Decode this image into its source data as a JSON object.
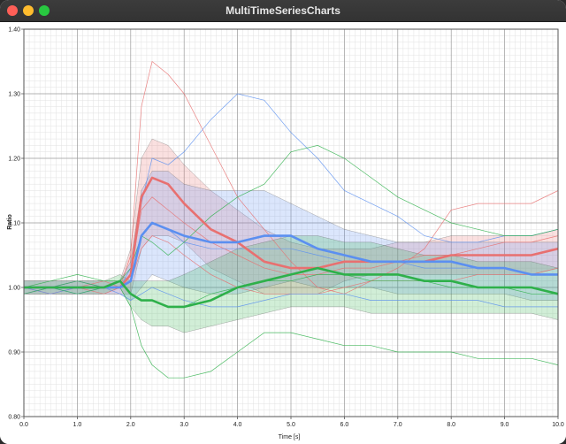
{
  "window": {
    "title": "MultiTimeSeriesCharts"
  },
  "chart_data": {
    "type": "line",
    "xlabel": "Time [s]",
    "ylabel": "Ratio",
    "xlim": [
      0,
      10
    ],
    "ylim": [
      0.8,
      1.4
    ],
    "x_ticks": [
      0.0,
      1.0,
      2.0,
      3.0,
      4.0,
      5.0,
      6.0,
      7.0,
      8.0,
      9.0,
      10.0
    ],
    "y_ticks": [
      0.8,
      0.9,
      1.0,
      1.1,
      1.2,
      1.3,
      1.4
    ],
    "x_tick_labels": [
      "0.0",
      "1.0",
      "2.0",
      "3.0",
      "4.0",
      "5.0",
      "6.0",
      "7.0",
      "8.0",
      "9.0",
      "10.0"
    ],
    "y_tick_labels": [
      "0.80",
      "0.90",
      "1.00",
      "1.10",
      "1.20",
      "1.30",
      "1.40"
    ],
    "grid": true,
    "x": [
      0.0,
      0.5,
      1.0,
      1.5,
      1.8,
      2.0,
      2.2,
      2.4,
      2.7,
      3.0,
      3.5,
      4.0,
      4.5,
      5.0,
      5.5,
      6.0,
      6.5,
      7.0,
      7.5,
      8.0,
      8.5,
      9.0,
      9.5,
      10.0
    ],
    "series": [
      {
        "color": "#e87070",
        "mean": [
          1.0,
          1.0,
          1.0,
          1.0,
          1.0,
          1.02,
          1.14,
          1.17,
          1.16,
          1.13,
          1.09,
          1.07,
          1.04,
          1.03,
          1.03,
          1.04,
          1.04,
          1.04,
          1.04,
          1.05,
          1.05,
          1.05,
          1.05,
          1.06
        ],
        "upper": [
          1.01,
          1.01,
          1.01,
          1.01,
          1.01,
          1.06,
          1.2,
          1.23,
          1.22,
          1.19,
          1.15,
          1.12,
          1.09,
          1.07,
          1.06,
          1.06,
          1.06,
          1.07,
          1.07,
          1.08,
          1.08,
          1.08,
          1.08,
          1.09
        ],
        "lower": [
          0.99,
          0.99,
          0.99,
          0.99,
          0.99,
          0.99,
          1.06,
          1.08,
          1.08,
          1.07,
          1.03,
          1.01,
          0.99,
          0.99,
          0.99,
          1.01,
          1.02,
          1.02,
          1.02,
          1.02,
          1.02,
          1.02,
          1.02,
          1.03
        ],
        "traces": [
          [
            1.0,
            1.0,
            1.01,
            1.0,
            1.0,
            1.05,
            1.28,
            1.35,
            1.33,
            1.3,
            1.22,
            1.14,
            1.09,
            1.04,
            1.0,
            0.99,
            1.01,
            1.03,
            1.06,
            1.12,
            1.13,
            1.13,
            1.13,
            1.15
          ],
          [
            1.0,
            0.99,
            1.0,
            1.01,
            1.0,
            1.02,
            1.12,
            1.14,
            1.12,
            1.1,
            1.07,
            1.05,
            1.03,
            1.02,
            1.02,
            1.03,
            1.03,
            1.04,
            1.05,
            1.05,
            1.06,
            1.07,
            1.07,
            1.08
          ],
          [
            0.99,
            1.0,
            1.0,
            0.99,
            1.0,
            1.01,
            1.06,
            1.08,
            1.07,
            1.05,
            1.02,
            1.0,
            0.99,
            0.99,
            0.99,
            1.0,
            1.01,
            1.01,
            1.01,
            1.01,
            1.02,
            1.02,
            1.02,
            1.03
          ]
        ]
      },
      {
        "color": "#5b8ff0",
        "mean": [
          1.0,
          1.0,
          1.0,
          1.0,
          1.0,
          1.01,
          1.08,
          1.1,
          1.09,
          1.08,
          1.07,
          1.07,
          1.08,
          1.08,
          1.06,
          1.05,
          1.04,
          1.04,
          1.04,
          1.04,
          1.03,
          1.03,
          1.02,
          1.02
        ],
        "upper": [
          1.01,
          1.01,
          1.01,
          1.01,
          1.01,
          1.04,
          1.15,
          1.18,
          1.18,
          1.16,
          1.15,
          1.15,
          1.15,
          1.13,
          1.11,
          1.09,
          1.08,
          1.07,
          1.07,
          1.07,
          1.07,
          1.07,
          1.07,
          1.07
        ],
        "lower": [
          0.99,
          0.99,
          0.99,
          0.99,
          0.99,
          0.98,
          1.0,
          1.02,
          1.01,
          1.0,
          0.99,
          0.99,
          1.0,
          1.01,
          1.0,
          1.0,
          1.0,
          0.99,
          0.99,
          0.99,
          0.99,
          0.99,
          0.98,
          0.98
        ],
        "traces": [
          [
            1.0,
            1.0,
            1.01,
            1.0,
            1.0,
            1.03,
            1.13,
            1.2,
            1.19,
            1.21,
            1.26,
            1.3,
            1.29,
            1.24,
            1.2,
            1.15,
            1.13,
            1.11,
            1.08,
            1.07,
            1.07,
            1.08,
            1.08,
            1.09
          ],
          [
            1.0,
            0.99,
            1.0,
            1.0,
            1.0,
            1.01,
            1.08,
            1.1,
            1.09,
            1.07,
            1.06,
            1.06,
            1.06,
            1.06,
            1.05,
            1.04,
            1.04,
            1.04,
            1.03,
            1.03,
            1.03,
            1.03,
            1.02,
            1.02
          ],
          [
            0.99,
            1.0,
            0.99,
            1.0,
            0.99,
            0.98,
            0.99,
            1.0,
            0.99,
            0.98,
            0.97,
            0.97,
            0.98,
            0.99,
            0.99,
            0.99,
            0.98,
            0.98,
            0.98,
            0.98,
            0.98,
            0.97,
            0.97,
            0.97
          ]
        ]
      },
      {
        "color": "#2eb04a",
        "mean": [
          1.0,
          1.0,
          1.0,
          1.0,
          1.01,
          0.99,
          0.98,
          0.98,
          0.97,
          0.97,
          0.98,
          1.0,
          1.01,
          1.02,
          1.03,
          1.02,
          1.02,
          1.02,
          1.01,
          1.01,
          1.0,
          1.0,
          1.0,
          0.99
        ],
        "upper": [
          1.01,
          1.01,
          1.01,
          1.01,
          1.02,
          1.01,
          1.01,
          1.01,
          1.01,
          1.02,
          1.04,
          1.06,
          1.07,
          1.08,
          1.08,
          1.07,
          1.07,
          1.06,
          1.05,
          1.05,
          1.04,
          1.04,
          1.04,
          1.03
        ],
        "lower": [
          0.99,
          0.99,
          0.99,
          0.99,
          1.0,
          0.97,
          0.95,
          0.94,
          0.94,
          0.93,
          0.94,
          0.95,
          0.96,
          0.97,
          0.97,
          0.97,
          0.96,
          0.96,
          0.96,
          0.96,
          0.96,
          0.96,
          0.96,
          0.95
        ],
        "traces": [
          [
            1.0,
            1.01,
            1.02,
            1.01,
            1.01,
            1.03,
            1.08,
            1.07,
            1.05,
            1.07,
            1.11,
            1.14,
            1.16,
            1.21,
            1.22,
            1.2,
            1.17,
            1.14,
            1.12,
            1.1,
            1.09,
            1.08,
            1.08,
            1.09
          ],
          [
            0.99,
            1.0,
            0.99,
            1.0,
            1.0,
            0.97,
            0.91,
            0.88,
            0.86,
            0.86,
            0.87,
            0.9,
            0.93,
            0.93,
            0.92,
            0.91,
            0.91,
            0.9,
            0.9,
            0.9,
            0.89,
            0.89,
            0.89,
            0.88
          ],
          [
            1.0,
            1.0,
            1.01,
            1.0,
            1.01,
            0.99,
            0.98,
            0.98,
            0.97,
            0.97,
            0.99,
            1.0,
            1.01,
            1.01,
            1.02,
            1.02,
            1.01,
            1.01,
            1.01,
            1.0,
            1.0,
            1.0,
            0.99,
            0.99
          ]
        ]
      }
    ]
  }
}
